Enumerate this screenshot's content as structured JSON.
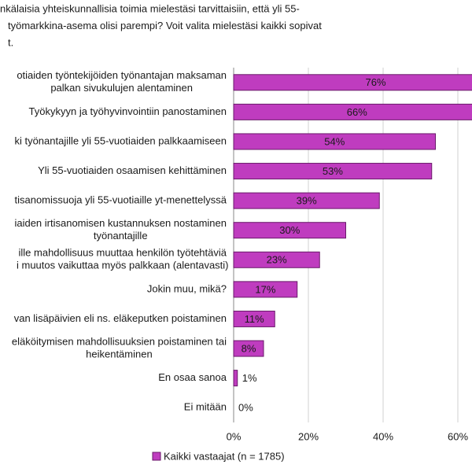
{
  "chart_data": {
    "type": "hbar",
    "title": [
      "nkälaisia yhteiskunnallisia toimia mielestäsi tarvittaisiin, että yli 55-",
      "työmarkkina-asema olisi parempi? Voit valita mielestäsi kaikki sopivat",
      "t."
    ],
    "categories": [
      [
        "otiaiden työntekijöiden työnantajan maksaman",
        "palkan sivukulujen alentaminen"
      ],
      [
        "Työkykyyn ja työhyvinvointiin panostaminen"
      ],
      [
        "ki työnantajille yli 55-vuotiaiden palkkaamiseen"
      ],
      [
        "Yli 55-vuotiaiden osaamisen kehittäminen"
      ],
      [
        "tisanomissuoja yli 55-vuotiaille yt-menettelyssä"
      ],
      [
        "iaiden irtisanomisen kustannuksen nostaminen",
        "työnantajille"
      ],
      [
        "ille mahdollisuus muuttaa henkilön työtehtäviä",
        "i muutos vaikuttaa myös palkkaan (alentavasti)"
      ],
      [
        "Jokin muu, mikä?"
      ],
      [
        "van lisäpäivien eli ns. eläkeputken poistaminen"
      ],
      [
        "eläköitymisen mahdollisuuksien poistaminen tai",
        "heikentäminen"
      ],
      [
        "En osaa sanoa"
      ],
      [
        "Ei mitään"
      ]
    ],
    "series": [
      {
        "name": "Kaikki vastaajat (n = 1785)",
        "color": "#bf3cbf",
        "values": [
          76,
          66,
          54,
          53,
          39,
          30,
          23,
          17,
          11,
          8,
          1,
          0
        ],
        "value_labels": [
          "76%",
          "66%",
          "54%",
          "53%",
          "39%",
          "30%",
          "23%",
          "17%",
          "11%",
          "8%",
          "1%",
          "0%"
        ]
      }
    ],
    "xlim": [
      0,
      80
    ],
    "xticks": [
      {
        "value": 0,
        "label": "0%"
      },
      {
        "value": 20,
        "label": "20%"
      },
      {
        "value": 40,
        "label": "40%"
      },
      {
        "value": 60,
        "label": "60%"
      }
    ],
    "grid": true
  }
}
